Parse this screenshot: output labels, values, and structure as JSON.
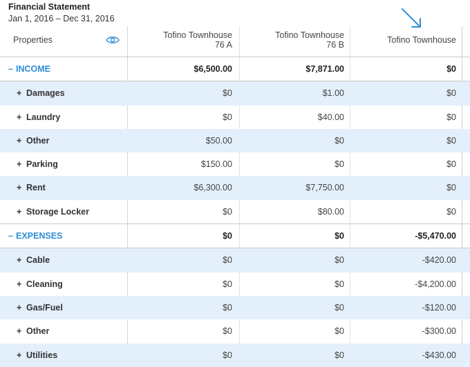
{
  "report": {
    "title": "Financial Statement",
    "date_range": "Jan 1, 2016 – Dec 31, 2016"
  },
  "table": {
    "header": {
      "properties_label": "Properties",
      "eye_icon": "eye-icon",
      "columns": [
        {
          "line1": "Tofino Townhouse",
          "line2": "76 A"
        },
        {
          "line1": "Tofino Townhouse",
          "line2": "76 B"
        },
        {
          "line1": "Tofino Townhouse",
          "line2": ""
        }
      ]
    },
    "income": {
      "toggle": "–",
      "label": "INCOME",
      "totals": [
        "$6,500.00",
        "$7,871.00",
        "$0"
      ],
      "rows": [
        {
          "toggle": "+",
          "label": "Damages",
          "values": [
            "$0",
            "$1.00",
            "$0"
          ]
        },
        {
          "toggle": "+",
          "label": "Laundry",
          "values": [
            "$0",
            "$40.00",
            "$0"
          ]
        },
        {
          "toggle": "+",
          "label": "Other",
          "values": [
            "$50.00",
            "$0",
            "$0"
          ]
        },
        {
          "toggle": "+",
          "label": "Parking",
          "values": [
            "$150.00",
            "$0",
            "$0"
          ]
        },
        {
          "toggle": "+",
          "label": "Rent",
          "values": [
            "$6,300.00",
            "$7,750.00",
            "$0"
          ]
        },
        {
          "toggle": "+",
          "label": "Storage Locker",
          "values": [
            "$0",
            "$80.00",
            "$0"
          ]
        }
      ]
    },
    "expenses": {
      "toggle": "–",
      "label": "EXPENSES",
      "totals": [
        "$0",
        "$0",
        "-$5,470.00"
      ],
      "rows": [
        {
          "toggle": "+",
          "label": "Cable",
          "values": [
            "$0",
            "$0",
            "-$420.00"
          ]
        },
        {
          "toggle": "+",
          "label": "Cleaning",
          "values": [
            "$0",
            "$0",
            "-$4,200.00"
          ]
        },
        {
          "toggle": "+",
          "label": "Gas/Fuel",
          "values": [
            "$0",
            "$0",
            "-$120.00"
          ]
        },
        {
          "toggle": "+",
          "label": "Other",
          "values": [
            "$0",
            "$0",
            "-$300.00"
          ]
        },
        {
          "toggle": "+",
          "label": "Utilities",
          "values": [
            "$0",
            "$0",
            "-$430.00"
          ]
        }
      ]
    }
  },
  "colors": {
    "accent": "#2f8fd6",
    "row_alt": "#e3effb",
    "annotation_arrow": "#2f8fd6"
  }
}
